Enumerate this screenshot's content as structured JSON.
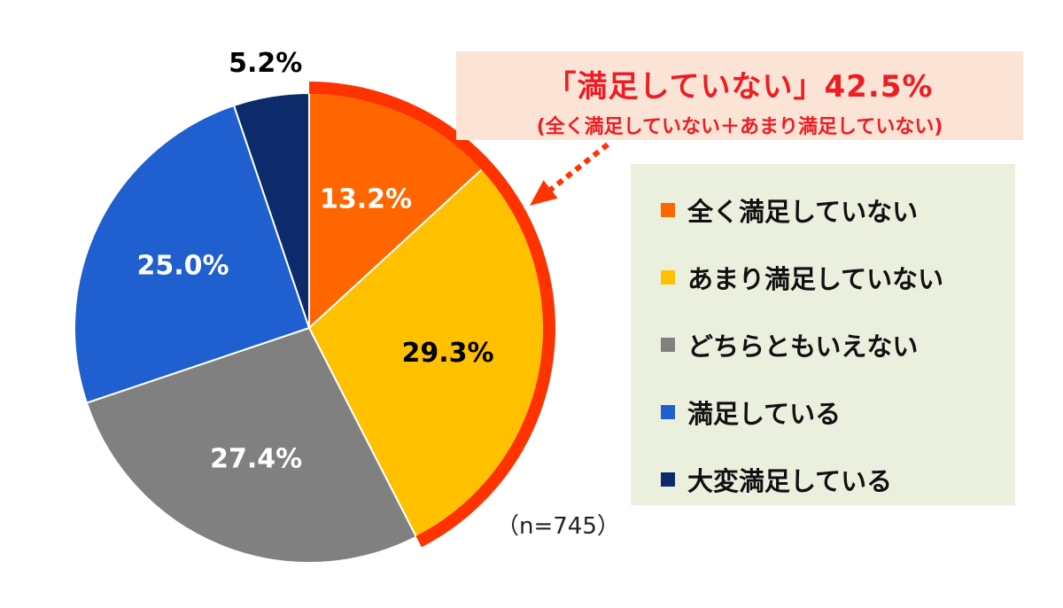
{
  "chart_data": {
    "type": "pie",
    "categories": [
      "全く満足していない",
      "あまり満足していない",
      "どちらともいえない",
      "満足している",
      "大変満足している"
    ],
    "values": [
      13.2,
      29.3,
      27.4,
      25.0,
      5.2
    ],
    "value_labels": [
      "13.2%",
      "29.3%",
      "27.4%",
      "25.0%",
      "5.2%"
    ],
    "colors": [
      "#ff6600",
      "#ffc000",
      "#808080",
      "#1f5fd0",
      "#0d2a6b"
    ],
    "label_colors": [
      "#ffffff",
      "#000000",
      "#ffffff",
      "#ffffff",
      "#000000"
    ],
    "start_angle_deg": 0,
    "direction": "clockwise",
    "highlight": {
      "slices": [
        0,
        1
      ],
      "color": "#ff3300",
      "text": "「満足していない」42.5%",
      "subtext": "(全く満足していない＋あまり満足していない)"
    },
    "sample_size": "（n=745）",
    "legend_position": "right"
  }
}
